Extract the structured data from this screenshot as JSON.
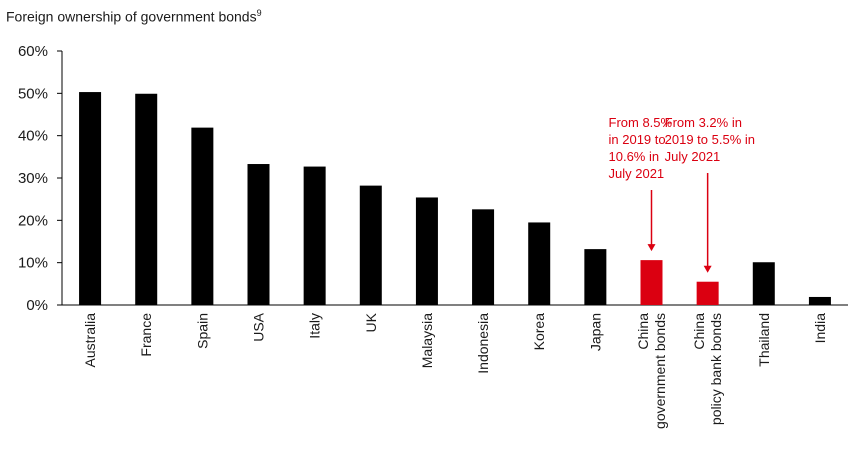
{
  "chart_data": {
    "type": "bar",
    "title": "Foreign ownership of government bonds",
    "title_superscript": "9",
    "categories": [
      [
        "Australia"
      ],
      [
        "France"
      ],
      [
        "Spain"
      ],
      [
        "USA"
      ],
      [
        "Italy"
      ],
      [
        "UK"
      ],
      [
        "Malaysia"
      ],
      [
        "Indonesia"
      ],
      [
        "Korea"
      ],
      [
        "Japan"
      ],
      [
        "China",
        "government bonds"
      ],
      [
        "China",
        "policy bank bonds"
      ],
      [
        "Thailand"
      ],
      [
        "India"
      ]
    ],
    "values": [
      50.3,
      49.9,
      41.9,
      33.3,
      32.7,
      28.2,
      25.4,
      22.6,
      19.5,
      13.2,
      10.6,
      5.5,
      10.1,
      1.9
    ],
    "highlight_indices": [
      10,
      11
    ],
    "ylim": [
      0,
      60
    ],
    "yticks": [
      0,
      10,
      20,
      30,
      40,
      50,
      60
    ],
    "ytick_labels": [
      "0%",
      "10%",
      "20%",
      "30%",
      "40%",
      "50%",
      "60%"
    ],
    "xlabel": "",
    "ylabel": "",
    "grid": false,
    "colors": {
      "bar": "#000000",
      "highlight": "#db0011",
      "axis": "#000000"
    },
    "annotations": [
      {
        "target_index": 10,
        "lines": [
          "From 8.5%",
          "in 2019 to",
          "10.6% in",
          "July 2021"
        ]
      },
      {
        "target_index": 11,
        "lines": [
          "From 3.2% in",
          "2019 to 5.5% in",
          "July 2021"
        ]
      }
    ]
  }
}
